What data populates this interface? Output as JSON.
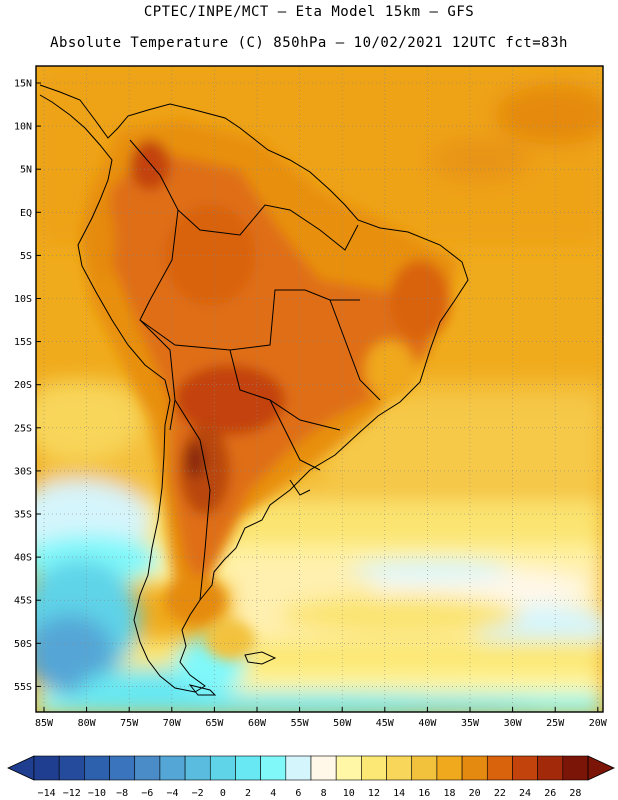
{
  "header": {
    "line1": "CPTEC/INPE/MCT –  Eta Model 15km – GFS",
    "line2": "Absolute Temperature (C) 850hPa – 10/02/2021 12UTC fct=83h"
  },
  "map": {
    "lat_labels": [
      "15N",
      "10N",
      "5N",
      "EQ",
      "5S",
      "10S",
      "15S",
      "20S",
      "25S",
      "30S",
      "35S",
      "40S",
      "45S",
      "50S",
      "55S"
    ],
    "lon_labels": [
      "85W",
      "80W",
      "75W",
      "70W",
      "65W",
      "60W",
      "55W",
      "50W",
      "45W",
      "40W",
      "35W",
      "30W",
      "25W",
      "20W"
    ],
    "colors": {
      "ocean_warm": "#f0a010",
      "ocean_mid": "#f6c843",
      "land_hot": "#df6e12",
      "land_very_hot": "#b9470d",
      "cold": "#5fd3e8"
    }
  },
  "colorbar": {
    "labels": [
      "-14",
      "-12",
      "-10",
      "-8",
      "-6",
      "-4",
      "-2",
      "0",
      "2",
      "4",
      "6",
      "8",
      "10",
      "12",
      "14",
      "16",
      "18",
      "20",
      "22",
      "24",
      "26",
      "28"
    ],
    "colors": [
      "#1f3e8f",
      "#254c9c",
      "#2d60ad",
      "#3a74bd",
      "#4a8cc7",
      "#54a6d6",
      "#5abde0",
      "#5fd3e8",
      "#67e8f2",
      "#80f8fa",
      "#d5f5fc",
      "#fff8e8",
      "#fff7a6",
      "#fce874",
      "#f8d65a",
      "#f3c23c",
      "#f0a81d",
      "#e58a10",
      "#d9620d",
      "#c3430c",
      "#a2290a",
      "#7a1508"
    ]
  }
}
